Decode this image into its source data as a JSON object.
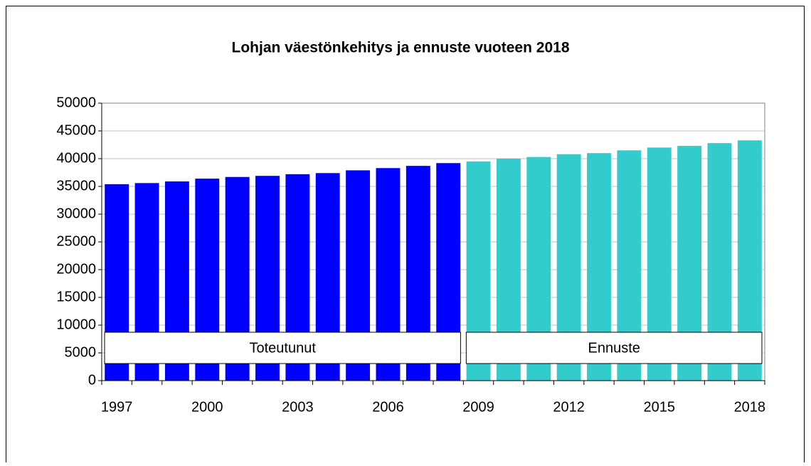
{
  "chart_data": {
    "type": "bar",
    "title": "Lohjan väestönkehitys ja ennuste vuoteen 2018",
    "categories": [
      "1997",
      null,
      null,
      "2000",
      null,
      null,
      "2003",
      null,
      null,
      "2006",
      null,
      null,
      "2009",
      null,
      null,
      "2012",
      null,
      null,
      "2015",
      null,
      null,
      "2018"
    ],
    "series": [
      {
        "name": "Toteutunut",
        "color": "#0000ff",
        "values": [
          35400,
          35600,
          35900,
          36400,
          36700,
          36900,
          37200,
          37400,
          37900,
          38300,
          38700,
          39200,
          null,
          null,
          null,
          null,
          null,
          null,
          null,
          null,
          null,
          null
        ]
      },
      {
        "name": "Ennuste",
        "color": "#33cccc",
        "values": [
          null,
          null,
          null,
          null,
          null,
          null,
          null,
          null,
          null,
          null,
          null,
          null,
          39500,
          40000,
          40300,
          40800,
          41000,
          41500,
          42000,
          42300,
          42800,
          43300
        ]
      }
    ],
    "ylim": [
      0,
      50000
    ],
    "yticks": [
      0,
      5000,
      10000,
      15000,
      20000,
      25000,
      30000,
      35000,
      40000,
      45000,
      50000
    ],
    "grid": true
  }
}
